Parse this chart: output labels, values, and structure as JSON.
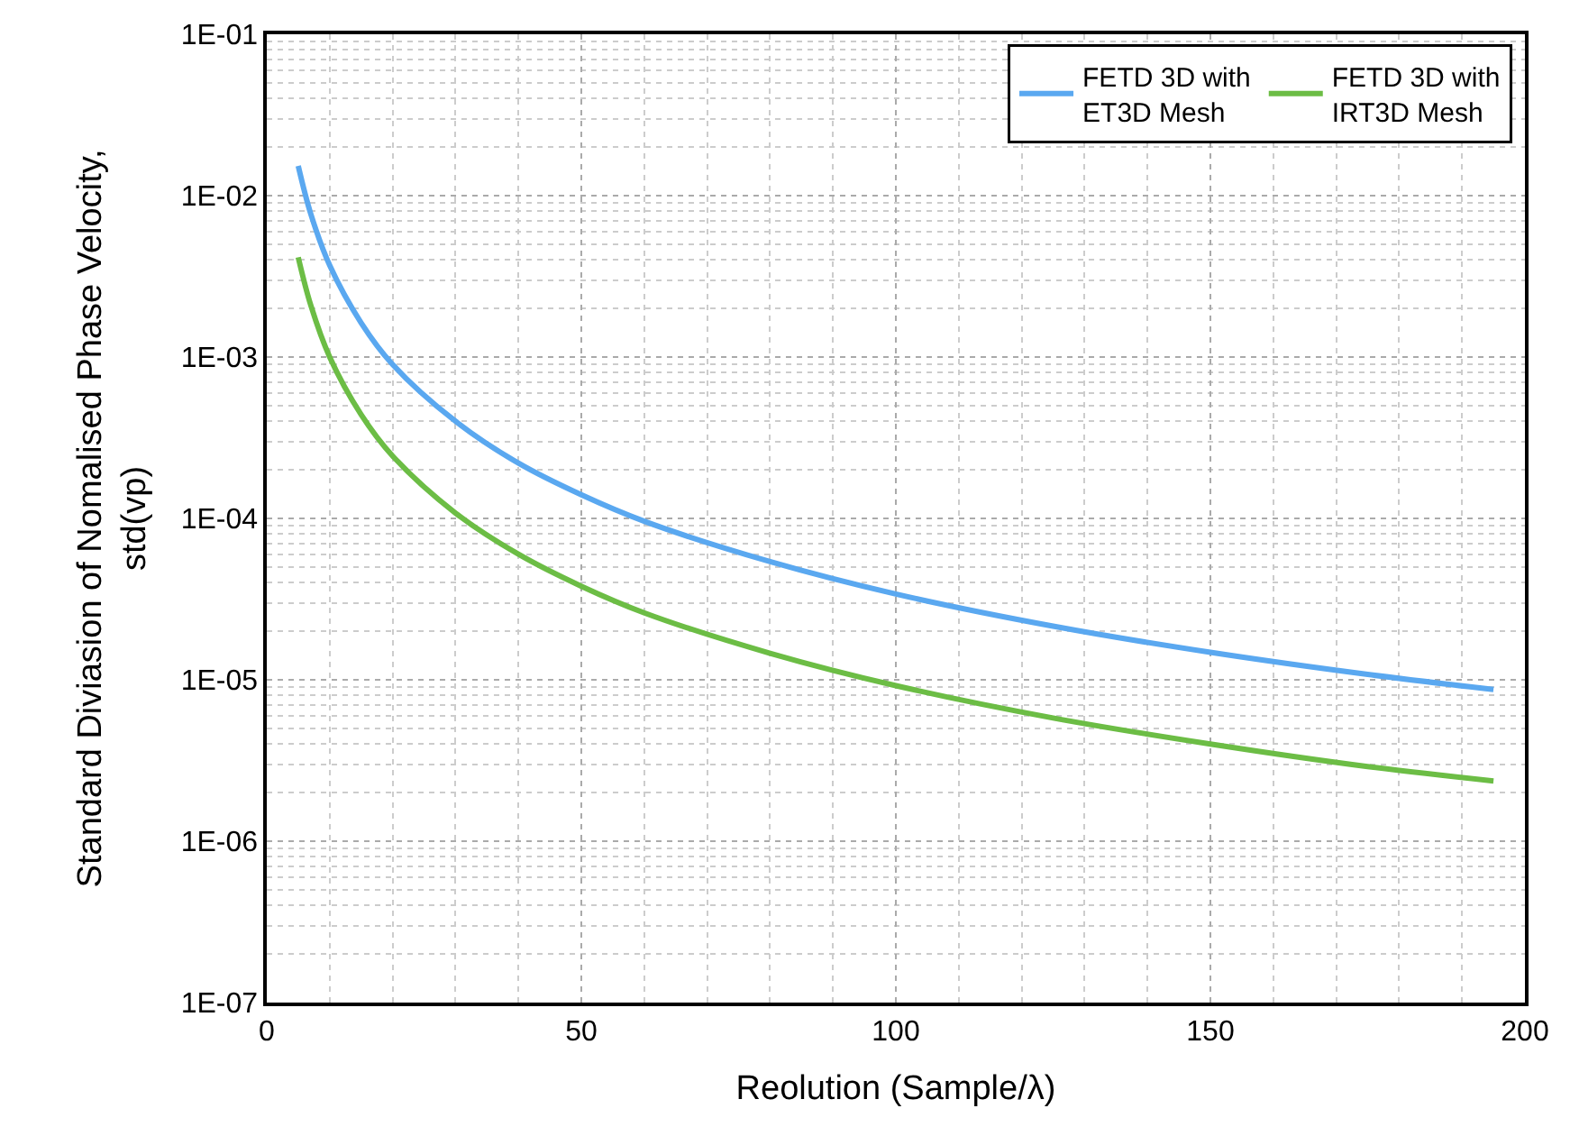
{
  "chart_data": {
    "type": "line",
    "xlabel": "Reolution (Sample/λ)",
    "ylabel": "Standard Diviasion of Nomalised Phase Velocity, std(vp)",
    "x": [
      5,
      7,
      10,
      15,
      20,
      30,
      40,
      50,
      60,
      80,
      100,
      125,
      150,
      175,
      195
    ],
    "series": [
      {
        "name": "FETD 3D with ET3D Mesh",
        "color": "#5aa8f0",
        "values": [
          0.0153,
          0.0077,
          0.0037,
          0.00163,
          0.0009,
          0.0004,
          0.00022,
          0.00014,
          9.6e-05,
          5.4e-05,
          3.4e-05,
          2.15e-05,
          1.48e-05,
          1.08e-05,
          8.7e-06
        ]
      },
      {
        "name": "FETD 3D with IRT3D Mesh",
        "color": "#6cbd45",
        "values": [
          0.00415,
          0.00209,
          0.001,
          0.00044,
          0.000244,
          0.000108,
          6e-05,
          3.8e-05,
          2.6e-05,
          1.46e-05,
          9.2e-06,
          5.8e-06,
          4e-06,
          2.9e-06,
          2.36e-06
        ]
      }
    ],
    "log": "y",
    "xlim": [
      0,
      200
    ],
    "xticks": [
      0,
      50,
      100,
      150,
      200
    ],
    "ylim": [
      1e-07,
      0.1
    ],
    "yticks": [
      {
        "value": 1e-07,
        "label": "1E-07"
      },
      {
        "value": 1e-06,
        "label": "1E-06"
      },
      {
        "value": 1e-05,
        "label": "1E-05"
      },
      {
        "value": 0.0001,
        "label": "1E-04"
      },
      {
        "value": 0.001,
        "label": "1E-03"
      },
      {
        "value": 0.01,
        "label": "1E-02"
      },
      {
        "value": 0.1,
        "label": "1E-01"
      }
    ],
    "grid": true,
    "legend": "top right",
    "marker": "none",
    "line_style": "solid"
  }
}
